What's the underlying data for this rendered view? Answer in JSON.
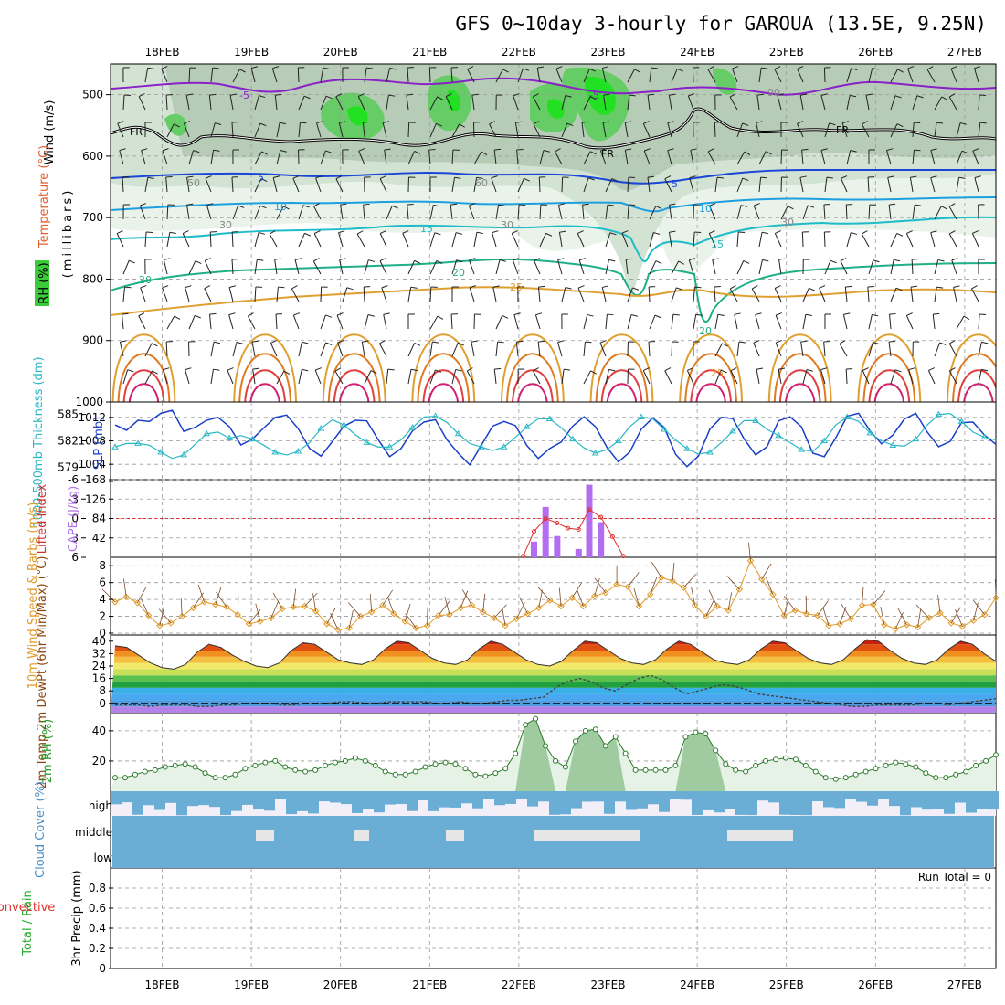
{
  "title": "GFS 0~10day 3-hourly for GAROUA (13.5E, 9.25N)",
  "dates": [
    "18FEB",
    "19FEB",
    "20FEB",
    "21FEB",
    "22FEB",
    "23FEB",
    "24FEB",
    "25FEB",
    "26FEB",
    "27FEB"
  ],
  "run_total": "Run Total = 0",
  "chart_data": [
    {
      "type": "heatmap",
      "panel": "upper-air",
      "ylabel": "(millibars)",
      "legend_labels": [
        "Wind (m/s)",
        "Temperature (°C)",
        "RH (%)"
      ],
      "yticks": [
        500,
        600,
        700,
        800,
        900,
        1000
      ],
      "ylim": [
        1000,
        450
      ],
      "temperature_contour_labels": [
        "-5",
        "FR",
        "5",
        "10",
        "15",
        "20",
        "25"
      ],
      "rh_contour_labels": [
        "30",
        "50",
        "60",
        "90"
      ]
    },
    {
      "type": "line",
      "panel": "thickness-slp",
      "ylabel_left": "1000-500mb Thickness (dm)",
      "ylabel_right": "SLP (mb)",
      "yticks_left": [
        579,
        582,
        585
      ],
      "yticks_right": [
        1004,
        1008,
        1012
      ],
      "series": [
        {
          "name": "SLP (mb)",
          "color": "#1a3fc8",
          "values": [
            1010.7,
            1009.8,
            1011.5,
            1011.3,
            1012.7,
            1013.2,
            1009.6,
            1010.3,
            1011.5,
            1012.0,
            1010.4,
            1007.3,
            1008.3,
            1010.2,
            1012.0,
            1012.4,
            1010.1,
            1006.7,
            1005.4,
            1007.9,
            1010.5,
            1011.5,
            1011.4,
            1008.2,
            1005.3,
            1006.7,
            1009.7,
            1011.2,
            1011.6,
            1008.2,
            1005.9,
            1003.9,
            1007.2,
            1010.5,
            1011.3,
            1010.6,
            1007.2,
            1005.0,
            1006.7,
            1007.8,
            1010.5,
            1012.1,
            1010.4,
            1006.9,
            1004.4,
            1006.1,
            1010.0,
            1011.9,
            1010.3,
            1005.7,
            1003.6,
            1005.4,
            1010.0,
            1012.0,
            1011.8,
            1008.3,
            1005.6,
            1007.0,
            1011.4,
            1012.1,
            1010.4,
            1005.9,
            1005.3,
            1008.5,
            1012.2,
            1012.7,
            1009.7,
            1007.5,
            1009.0,
            1011.7,
            1012.7,
            1009.5,
            1007.0,
            1007.9,
            1011.1,
            1011.2,
            1009.0,
            1007.4
          ]
        },
        {
          "name": "1000-500mb Thickness (dm)",
          "color": "#29b8c6",
          "values": [
            581.3,
            581.7,
            581.7,
            581.5,
            580.7,
            580.0,
            580.4,
            581.6,
            582.8,
            583.0,
            582.3,
            582.6,
            582.2,
            581.5,
            580.7,
            580.4,
            580.8,
            581.8,
            583.4,
            584.4,
            583.8,
            582.7,
            581.8,
            581.3,
            581.3,
            582.1,
            583.5,
            584.7,
            584.8,
            584.1,
            582.8,
            581.7,
            581.3,
            580.9,
            581.3,
            582.4,
            583.6,
            584.5,
            584.5,
            583.5,
            582.2,
            581.2,
            580.6,
            581.0,
            582.0,
            583.6,
            584.7,
            584.5,
            583.3,
            582.1,
            581.1,
            580.5,
            580.7,
            581.8,
            583.1,
            584.3,
            584.3,
            583.3,
            582.6,
            581.8,
            581.0,
            580.8,
            582.0,
            583.8,
            584.7,
            584.2,
            582.9,
            582.0,
            581.5,
            581.4,
            582.2,
            583.8,
            585.0,
            585.1,
            584.2,
            583.0,
            582.4,
            582.1
          ]
        }
      ]
    },
    {
      "type": "bar",
      "panel": "cape-li",
      "ylabel_left": "Lifted Index",
      "ylabel_right": "CAPE (J/kg)",
      "yticks_left": [
        "-6",
        "-3",
        "0",
        "3",
        "6"
      ],
      "yticks_right": [
        168,
        126,
        84,
        42
      ],
      "cape_bars": [
        {
          "day": 4.17,
          "value": 34
        },
        {
          "day": 4.3,
          "value": 109
        },
        {
          "day": 4.43,
          "value": 46
        },
        {
          "day": 4.67,
          "value": 18
        },
        {
          "day": 4.79,
          "value": 157
        },
        {
          "day": 4.92,
          "value": 76
        }
      ],
      "lifted_index": [
        {
          "day": 4.05,
          "value": 5.8
        },
        {
          "day": 4.17,
          "value": 2.0
        },
        {
          "day": 4.3,
          "value": 0.0
        },
        {
          "day": 4.43,
          "value": 0.7
        },
        {
          "day": 4.55,
          "value": 1.5
        },
        {
          "day": 4.67,
          "value": 1.7
        },
        {
          "day": 4.79,
          "value": -1.4
        },
        {
          "day": 4.92,
          "value": -0.2
        },
        {
          "day": 5.05,
          "value": 2.8
        },
        {
          "day": 5.17,
          "value": 5.8
        }
      ]
    },
    {
      "type": "line",
      "panel": "wind10m",
      "ylabel": "10m Wind Speed & Barbs (m/s)",
      "yticks": [
        0,
        2,
        4,
        6,
        8
      ],
      "ylim": [
        0,
        9
      ],
      "series": [
        {
          "name": "10m Wind Speed",
          "color": "#e09a2a",
          "values": [
            3.7,
            4.3,
            3.6,
            2.1,
            0.9,
            1.2,
            2.0,
            3.0,
            3.7,
            3.4,
            3.1,
            2.2,
            1.1,
            1.4,
            1.8,
            2.9,
            3.1,
            3.2,
            2.6,
            1.1,
            0.4,
            0.6,
            2.0,
            2.5,
            3.3,
            2.3,
            1.4,
            0.6,
            0.9,
            2.1,
            2.2,
            3.0,
            3.3,
            2.5,
            1.8,
            0.9,
            1.7,
            2.3,
            3.0,
            3.9,
            3.2,
            4.2,
            3.2,
            4.4,
            4.8,
            5.8,
            5.5,
            3.2,
            4.6,
            6.6,
            6.2,
            5.4,
            3.3,
            2.0,
            3.2,
            2.7,
            5.2,
            8.6,
            6.4,
            4.6,
            2.1,
            2.7,
            2.3,
            2.1,
            0.9,
            1.1,
            1.7,
            3.3,
            3.4,
            1.0,
            0.5,
            1.0,
            0.7,
            1.8,
            2.4,
            1.2,
            0.8,
            1.5,
            2.2,
            4.2
          ]
        }
      ]
    },
    {
      "type": "area",
      "panel": "temp-dewpt",
      "ylabel": "2m Temp 2m DewPt (6hr Min/Max) (°C)",
      "yticks": [
        0,
        8,
        16,
        24,
        32,
        40
      ],
      "ylim": [
        -6,
        44
      ],
      "series": [
        {
          "name": "2m Temp",
          "values": [
            37,
            36,
            31,
            26,
            23,
            22,
            25,
            33,
            38,
            36,
            31,
            27,
            24,
            23,
            26,
            34,
            39,
            38,
            33,
            28,
            26,
            25,
            28,
            35,
            40,
            39,
            34,
            29,
            26,
            25,
            28,
            35,
            40,
            38,
            33,
            28,
            25,
            24,
            27,
            34,
            40,
            39,
            34,
            29,
            26,
            25,
            28,
            35,
            40,
            38,
            33,
            28,
            26,
            25,
            28,
            35,
            40,
            39,
            34,
            29,
            26,
            25,
            28,
            35,
            41,
            40,
            34,
            29,
            26,
            25,
            28,
            35,
            40,
            38,
            32,
            27
          ]
        },
        {
          "name": "2m DewPt",
          "values": [
            -1,
            -1,
            -1,
            -2,
            -1,
            -1,
            -1,
            -2,
            -2,
            -1,
            -1,
            0,
            0,
            0,
            -1,
            -1,
            0,
            0,
            0,
            1,
            1,
            0,
            0,
            1,
            1,
            1,
            1,
            0,
            0,
            1,
            0,
            0,
            1,
            2,
            2,
            3,
            4,
            10,
            14,
            16,
            14,
            10,
            8,
            12,
            16,
            18,
            15,
            10,
            6,
            8,
            10,
            12,
            11,
            9,
            6,
            5,
            4,
            3,
            2,
            1,
            0,
            -1,
            -2,
            -2,
            -1,
            -1,
            -1,
            -1,
            0,
            0,
            -1,
            0,
            1,
            2,
            3
          ]
        }
      ]
    },
    {
      "type": "area",
      "panel": "rh2m",
      "ylabel": "2m RH (%)",
      "yticks": [
        20,
        40
      ],
      "ylim": [
        0,
        52
      ],
      "series": [
        {
          "name": "2m RH",
          "values": [
            9,
            9,
            11,
            13,
            14,
            16,
            17,
            18,
            16,
            12,
            9,
            9,
            11,
            15,
            17,
            19,
            20,
            16,
            14,
            13,
            14,
            17,
            19,
            20,
            22,
            20,
            17,
            13,
            11,
            11,
            13,
            16,
            18,
            19,
            18,
            15,
            11,
            10,
            12,
            15,
            25,
            44,
            48,
            30,
            20,
            16,
            33,
            40,
            41,
            30,
            36,
            25,
            14,
            14,
            14,
            14,
            17,
            36,
            39,
            38,
            27,
            18,
            14,
            13,
            17,
            20,
            21,
            22,
            21,
            17,
            13,
            9,
            8,
            9,
            11,
            13,
            15,
            17,
            19,
            18,
            16,
            12,
            9,
            9,
            11,
            13,
            17,
            20,
            24
          ]
        }
      ]
    },
    {
      "type": "area",
      "panel": "cloud-cover",
      "ylabel": "Cloud Cover (%)",
      "categories": [
        "high",
        "middle",
        "low"
      ]
    },
    {
      "type": "bar",
      "panel": "precip",
      "ylabel": "3hr Precip (mm)",
      "legend_labels": [
        "Total / Rain",
        "Convective"
      ],
      "yticks": [
        0,
        0.2,
        0.4,
        0.6,
        0.8
      ],
      "ylim": [
        0,
        1
      ],
      "values": []
    }
  ]
}
